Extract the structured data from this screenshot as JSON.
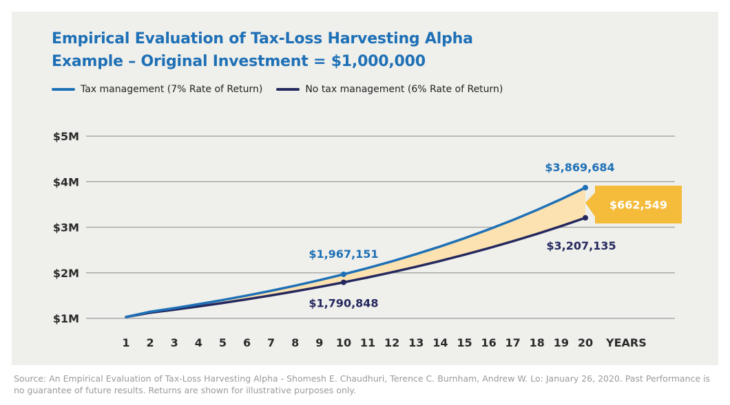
{
  "chart_data": {
    "type": "line",
    "title": "Empirical Evaluation of Tax-Loss Harvesting Alpha",
    "subtitle": "Example – Original Investment = $1,000,000",
    "x_axis_label": "YEARS",
    "x": [
      1,
      2,
      3,
      4,
      5,
      6,
      7,
      8,
      9,
      10,
      11,
      12,
      13,
      14,
      15,
      16,
      17,
      18,
      19,
      20
    ],
    "y_ticks": [
      {
        "label": "$1M",
        "value": 1000000
      },
      {
        "label": "$2M",
        "value": 2000000
      },
      {
        "label": "$3M",
        "value": 3000000
      },
      {
        "label": "$4M",
        "value": 4000000
      },
      {
        "label": "$5M",
        "value": 5000000
      }
    ],
    "ylim": [
      1000000,
      5000000
    ],
    "grid": true,
    "legend_position": "top-left",
    "series": [
      {
        "name": "Tax management (7% Rate of Return)",
        "color": "#1e70b6",
        "rate": 0.07,
        "values": [
          1070000,
          1144900,
          1225043,
          1310796,
          1402552,
          1500730,
          1605781,
          1718186,
          1838459,
          1967151,
          2104852,
          2252192,
          2409845,
          2578534,
          2759032,
          2952164,
          3158815,
          3379932,
          3616528,
          3869684
        ]
      },
      {
        "name": "No tax management (6% Rate of Return)",
        "color": "#24285e",
        "rate": 0.06,
        "values": [
          1060000,
          1123600,
          1191016,
          1262477,
          1338226,
          1418519,
          1503630,
          1593848,
          1689479,
          1790848,
          1898299,
          2012196,
          2132928,
          2260904,
          2396558,
          2540352,
          2692773,
          2854339,
          3025600,
          3207135
        ]
      }
    ],
    "annotations": [
      {
        "text": "$1,967,151",
        "x": 10,
        "series": 0
      },
      {
        "text": "$1,790,848",
        "x": 10,
        "series": 1
      },
      {
        "text": "$3,869,684",
        "x": 20,
        "series": 0
      },
      {
        "text": "$3,207,135",
        "x": 20,
        "series": 1
      }
    ],
    "difference_callout": {
      "text": "$662,549",
      "color": "#f5bb3a",
      "fill": "#fbe2b0"
    }
  },
  "source": "Source: An Empirical Evaluation of Tax-Loss Harvesting Alpha - Shomesh E. Chaudhuri, Terence C. Burnham, Andrew W. Lo: January 26, 2020. Past Performance is no guarantee of future results. Returns are shown for illustrative purposes only."
}
